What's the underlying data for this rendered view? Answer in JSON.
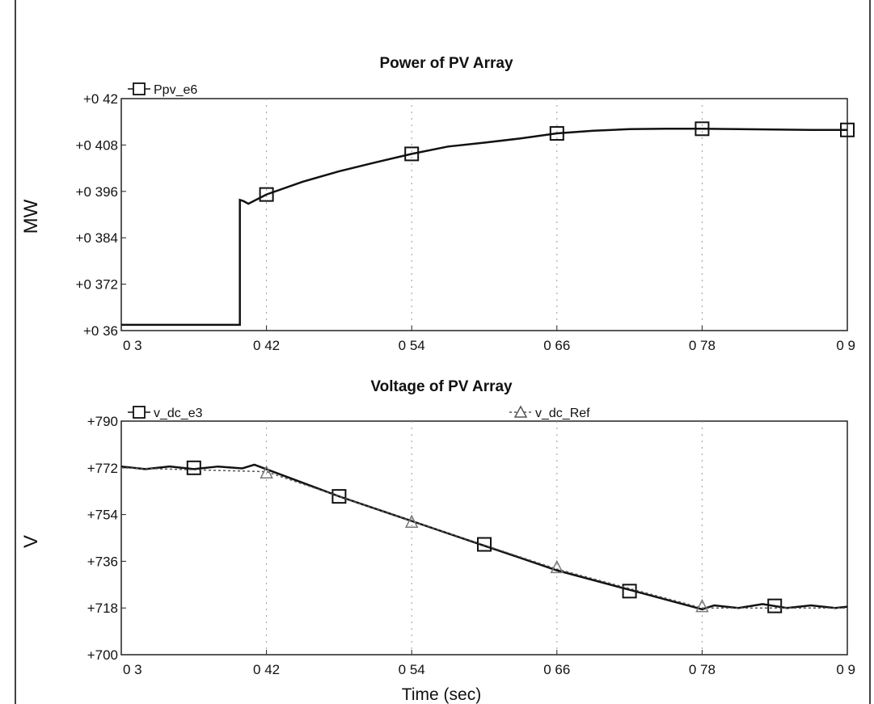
{
  "chart_data": [
    {
      "type": "line",
      "title": "Power of PV Array",
      "ylabel": "MW",
      "xlabel": "",
      "xlim": [
        0.3,
        0.9
      ],
      "ylim": [
        0.36,
        0.42
      ],
      "x_ticks": [
        "0 3",
        "0 42",
        "0 54",
        "0 66",
        "0 78",
        "0 9"
      ],
      "y_ticks": [
        "+0 36",
        "+0 372",
        "+0 384",
        "+0 396",
        "+0 408",
        "+0 42"
      ],
      "grid": "dotted vertical",
      "legend_position": "top-left",
      "series": [
        {
          "name": "Ppv_e6",
          "marker": "square",
          "x": [
            0.3,
            0.35,
            0.398,
            0.398,
            0.401,
            0.405,
            0.42,
            0.45,
            0.48,
            0.51,
            0.54,
            0.57,
            0.6,
            0.63,
            0.66,
            0.69,
            0.72,
            0.75,
            0.78,
            0.81,
            0.84,
            0.87,
            0.9
          ],
          "y": [
            0.3615,
            0.3615,
            0.3615,
            0.3938,
            0.3935,
            0.3928,
            0.3952,
            0.3985,
            0.4012,
            0.4035,
            0.4057,
            0.4076,
            0.4086,
            0.4097,
            0.411,
            0.4117,
            0.4121,
            0.4122,
            0.4122,
            0.4121,
            0.412,
            0.4119,
            0.4119
          ],
          "marker_x": [
            0.42,
            0.54,
            0.66,
            0.78,
            0.9
          ],
          "marker_y": [
            0.3952,
            0.4057,
            0.411,
            0.4122,
            0.4119
          ]
        }
      ]
    },
    {
      "type": "line",
      "title": "Voltage of PV Array",
      "ylabel": "V",
      "xlabel": "Time (sec)",
      "xlim": [
        0.3,
        0.9
      ],
      "ylim": [
        700,
        790
      ],
      "x_ticks": [
        "0 3",
        "0 42",
        "0 54",
        "0 66",
        "0 78",
        "0 9"
      ],
      "y_ticks": [
        "+700",
        "+718",
        "+736",
        "+754",
        "+772",
        "+790"
      ],
      "grid": "dotted vertical",
      "legend_position": "top",
      "series": [
        {
          "name": "v_dc_e3",
          "marker": "square",
          "x": [
            0.3,
            0.32,
            0.34,
            0.36,
            0.38,
            0.4,
            0.41,
            0.48,
            0.54,
            0.6,
            0.66,
            0.72,
            0.78,
            0.79,
            0.81,
            0.83,
            0.85,
            0.87,
            0.89,
            0.9
          ],
          "y": [
            772.5,
            771.5,
            772.5,
            771.5,
            772.5,
            771.8,
            773.2,
            761.0,
            751.5,
            742.0,
            732.5,
            725.0,
            717.5,
            719.0,
            718.0,
            719.5,
            718.0,
            719.0,
            718.0,
            718.5
          ],
          "marker_x": [
            0.36,
            0.48,
            0.6,
            0.72,
            0.84
          ],
          "marker_y": [
            772.0,
            761.0,
            742.5,
            724.5,
            718.8
          ]
        },
        {
          "name": "v_dc_Ref",
          "marker": "triangle",
          "x": [
            0.3,
            0.42,
            0.54,
            0.66,
            0.78,
            0.9
          ],
          "y": [
            772.0,
            770.5,
            751.5,
            733.0,
            718.0,
            718.0
          ],
          "marker_x": [
            0.42,
            0.54,
            0.66,
            0.78
          ],
          "marker_y": [
            770.0,
            751.0,
            733.5,
            718.5
          ]
        }
      ]
    }
  ]
}
